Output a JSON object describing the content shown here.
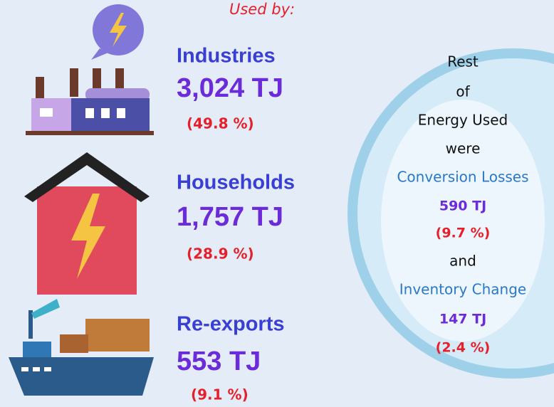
{
  "header": {
    "title": "Used by:"
  },
  "items": [
    {
      "label": "Industries",
      "amount": "3,024 TJ",
      "share": "(49.8 %)"
    },
    {
      "label": "Households",
      "amount": "1,757 TJ",
      "share": "(28.9 %)"
    },
    {
      "label": "Re-exports",
      "amount": "553 TJ",
      "share": "(9.1 %)"
    }
  ],
  "rest": {
    "lines": [
      "Rest",
      "of",
      "Energy Used",
      "were"
    ],
    "conversion": {
      "label": "Conversion Losses",
      "amount": "590 TJ",
      "share": "(9.7 %)"
    },
    "joiner": "and",
    "inventory": {
      "label": "Inventory Change",
      "amount": "147 TJ",
      "share": "(2.4 %)"
    }
  }
}
